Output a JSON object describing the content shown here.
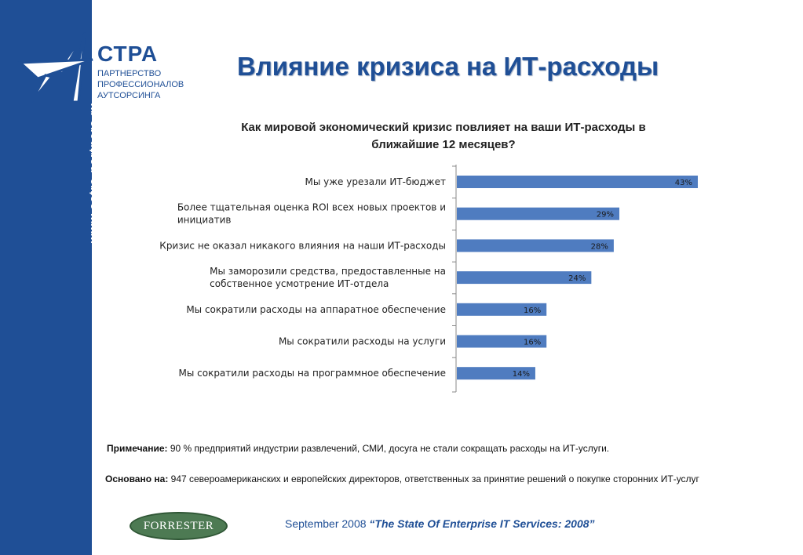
{
  "sidebar": {
    "url": "www.astra-partners.ru"
  },
  "brand": {
    "name": "СТРА",
    "subtitle_lines": [
      "ПАРТНЕРСТВО",
      "ПРОФЕССИОНАЛОВ",
      "АУТСОРСИНГА"
    ]
  },
  "page": {
    "title": "Влияние кризиса на ИТ-расходы"
  },
  "chart_data": {
    "type": "bar",
    "orientation": "horizontal",
    "title": "Как мировой экономический кризис повлияет на ваши ИТ-расходы в ближайшие 12 месяцев?",
    "categories": [
      "Мы уже урезали ИТ-бюджет",
      "Более тщательная оценка ROI всех новых проектов и инициатив",
      "Кризис не оказал никакого влияния на наши ИТ-расходы",
      "Мы заморозили средства, предоставленные на собственное усмотрение ИТ-отдела",
      "Мы сократили расходы на аппаратное обеспечение",
      "Мы сократили расходы на услуги",
      "Мы сократили расходы на программное обеспечение"
    ],
    "category_lines": [
      [
        "Мы уже урезали ИТ-бюджет"
      ],
      [
        "Более тщательная оценка ROI всех новых проектов и",
        "инициатив"
      ],
      [
        "Кризис не оказал никакого влияния на наши ИТ-расходы"
      ],
      [
        "Мы заморозили средства, предоставленные на",
        "собственное усмотрение ИТ-отдела"
      ],
      [
        "Мы сократили расходы на аппаратное обеспечение"
      ],
      [
        "Мы сократили расходы на услуги"
      ],
      [
        "Мы сократили расходы на программное обеспечение"
      ]
    ],
    "values": [
      43,
      29,
      28,
      24,
      16,
      16,
      14
    ],
    "data_labels": [
      "43%",
      "29%",
      "28%",
      "24%",
      "16%",
      "16%",
      "14%"
    ],
    "xlim": [
      0,
      50
    ],
    "bar_color": "#4f7cc0",
    "grid": false
  },
  "note": {
    "label": "Примечание:",
    "text": " 90 % предприятий индустрии развлечений, СМИ, досуга не стали сокращать расходы на ИТ-услуги."
  },
  "basis": {
    "label": "Основано на:",
    "text": " 947 североамериканских и европейских директоров, ответственных за принятие решений о покупке сторонних ИТ-услуг"
  },
  "footer": {
    "logo_text": "FORRESTER",
    "source_plain": "September 2008 ",
    "source_title": "“The State Of Enterprise IT Services: 2008”"
  },
  "colors": {
    "sidebar": "#1f4f96",
    "title": "#1f4f96",
    "bar": "#4f7cc0",
    "forrester": "#4d7a53"
  }
}
